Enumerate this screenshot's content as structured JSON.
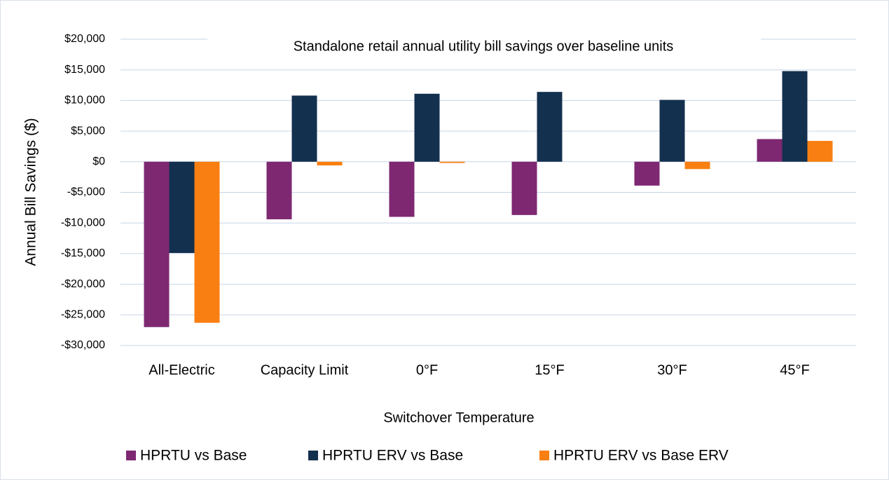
{
  "chart_data": {
    "type": "bar",
    "title": "Standalone retail annual utility bill savings over baseline units",
    "y_label": "Annual Bill Savings ($)",
    "x_label": "Switchover Temperature",
    "categories": [
      "All-Electric",
      "Capacity Limit",
      "0°F",
      "15°F",
      "30°F",
      "45°F"
    ],
    "series": [
      {
        "name": "HPRTU vs Base",
        "color": "#7e2872",
        "values": [
          -27000,
          -9400,
          -9000,
          -8700,
          -3900,
          3700
        ]
      },
      {
        "name": "HPRTU ERV vs Base",
        "color": "#14304f",
        "values": [
          -14900,
          10800,
          11100,
          11400,
          10100,
          14800
        ]
      },
      {
        "name": "HPRTU ERV vs Base ERV",
        "color": "#f97f12",
        "values": [
          -26300,
          -600,
          -200,
          0,
          -1200,
          3400
        ]
      }
    ],
    "ylim": [
      -30000,
      20000
    ],
    "yticks": [
      {
        "value": -30000,
        "label": "-$30,000"
      },
      {
        "value": -25000,
        "label": "-$25,000"
      },
      {
        "value": -20000,
        "label": "-$20,000"
      },
      {
        "value": -15000,
        "label": "-$15,000"
      },
      {
        "value": -10000,
        "label": "-$10,000"
      },
      {
        "value": -5000,
        "label": "-$5,000"
      },
      {
        "value": 0,
        "label": "$0"
      },
      {
        "value": 5000,
        "label": "$5,000"
      },
      {
        "value": 10000,
        "label": "$10,000"
      },
      {
        "value": 15000,
        "label": "$15,000"
      },
      {
        "value": 20000,
        "label": "$20,000"
      }
    ],
    "grid": true,
    "legend": "bottom"
  }
}
